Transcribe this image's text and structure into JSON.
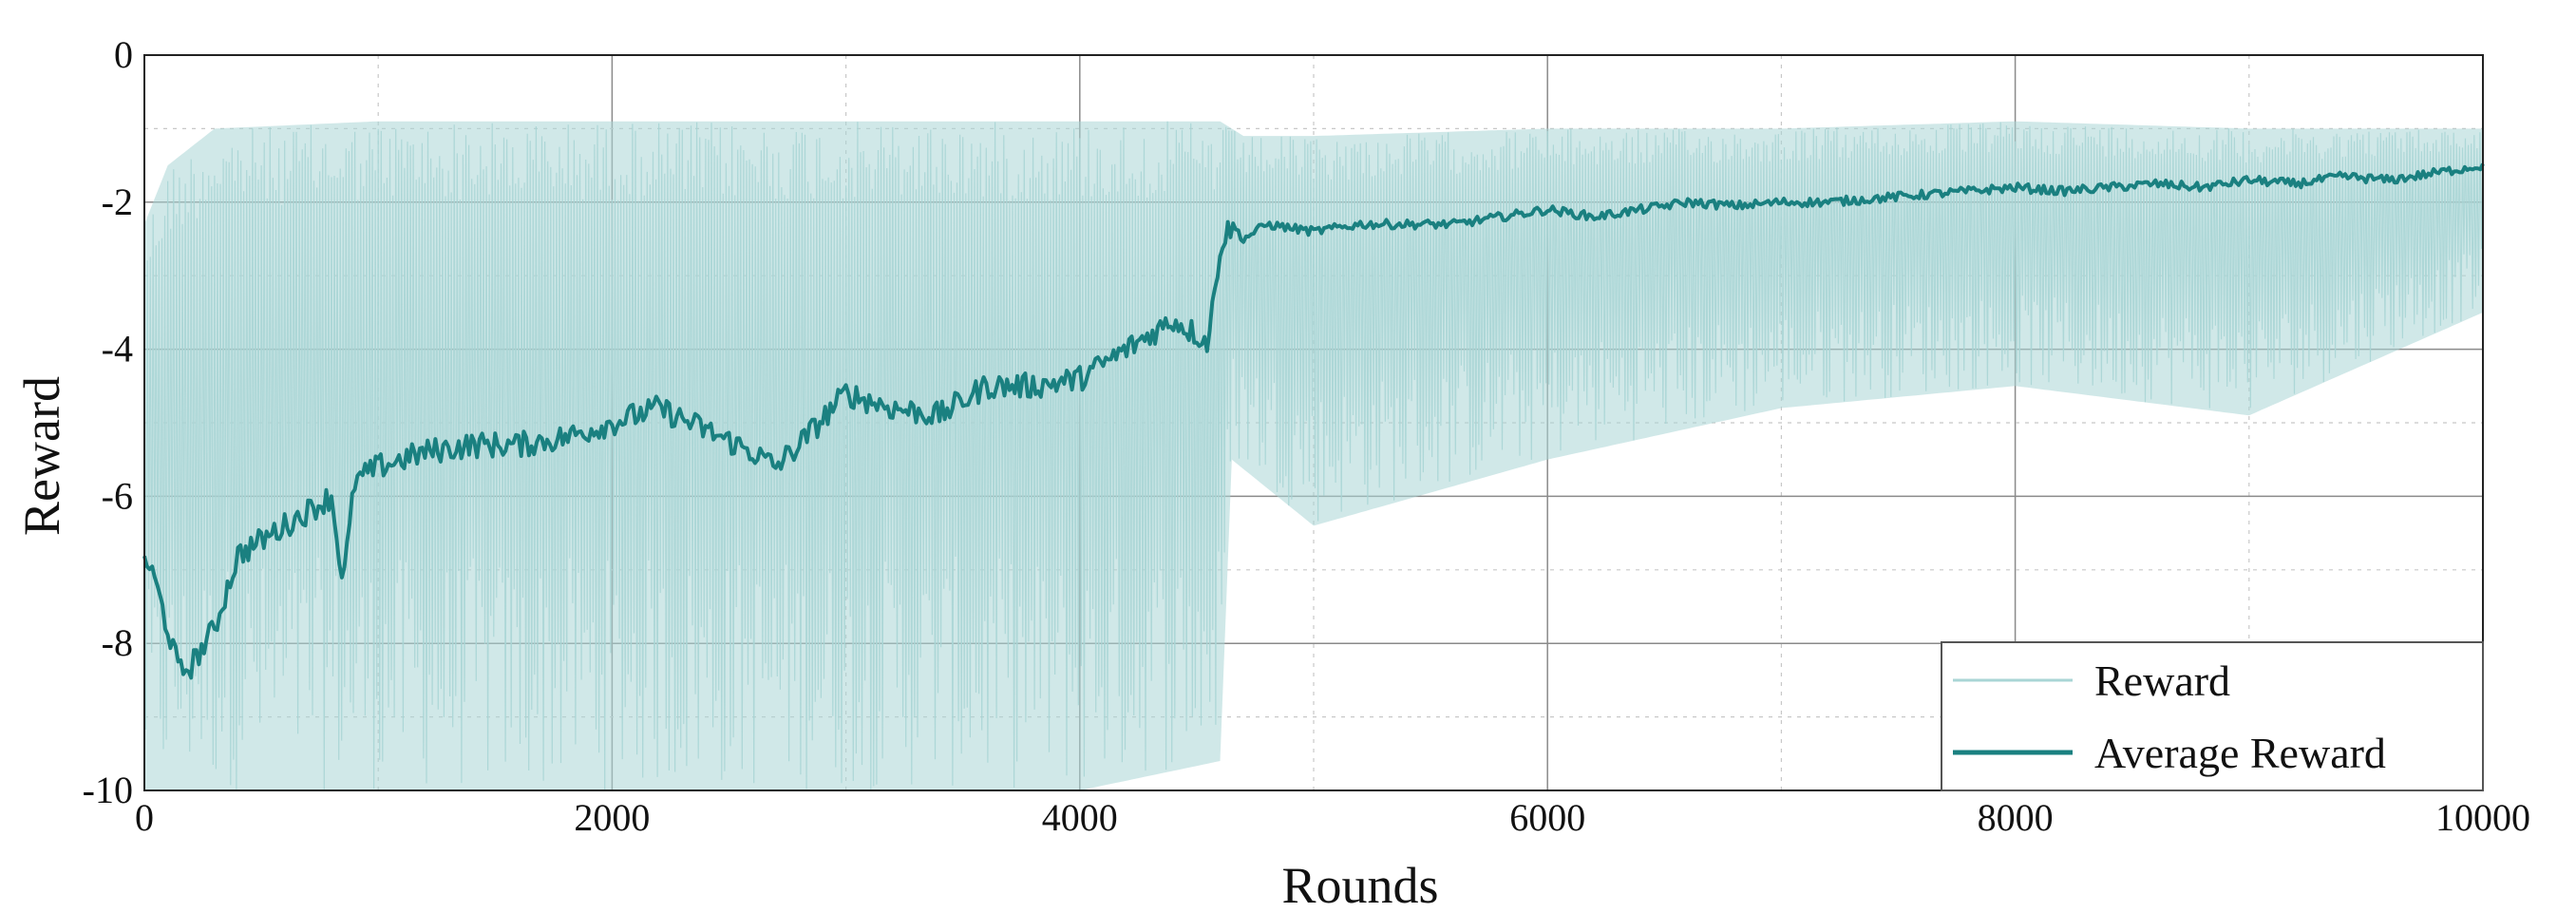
{
  "chart_data": {
    "type": "line",
    "xlabel": "Rounds",
    "ylabel": "Reward",
    "xlim": [
      0,
      10000
    ],
    "ylim": [
      -10,
      0
    ],
    "xticks": [
      0,
      2000,
      4000,
      6000,
      8000,
      10000
    ],
    "yticks": [
      0,
      -2,
      -4,
      -6,
      -8,
      -10
    ],
    "x_tick_labels": [
      "0",
      "2000",
      "4000",
      "6000",
      "8000",
      "10000"
    ],
    "y_tick_labels": [
      "0",
      "-2",
      "-4",
      "-6",
      "-8",
      "-10"
    ],
    "grid": true,
    "legend_position": "bottom-right",
    "series": [
      {
        "name": "Reward",
        "color": "#a9d5d5",
        "style": "thin-noisy",
        "upper_envelope": {
          "x": [
            0,
            100,
            300,
            1000,
            2000,
            3000,
            4000,
            4600,
            4700,
            5000,
            6000,
            7000,
            8000,
            9000,
            10000
          ],
          "y": [
            -2.3,
            -1.5,
            -1.0,
            -0.9,
            -0.9,
            -0.9,
            -0.9,
            -0.9,
            -1.1,
            -1.1,
            -1.0,
            -1.0,
            -0.9,
            -1.0,
            -1.0
          ]
        },
        "lower_envelope": {
          "x": [
            0,
            200,
            1000,
            2000,
            3000,
            4000,
            4600,
            4650,
            5000,
            6000,
            7000,
            8000,
            9000,
            10000
          ],
          "y": [
            -10,
            -10,
            -10,
            -10,
            -10,
            -10,
            -9.6,
            -5.5,
            -6.4,
            -5.5,
            -4.8,
            -4.5,
            -4.9,
            -3.5
          ]
        }
      },
      {
        "name": "Average Reward",
        "color": "#1a8080",
        "style": "thick",
        "x": [
          0,
          50,
          150,
          200,
          300,
          400,
          500,
          600,
          800,
          850,
          900,
          1000,
          1200,
          1400,
          1600,
          1800,
          2000,
          2200,
          2400,
          2600,
          2700,
          2800,
          3000,
          3200,
          3400,
          3600,
          3800,
          4000,
          4200,
          4400,
          4550,
          4600,
          4650,
          4700,
          4800,
          5000,
          5200,
          5400,
          5600,
          5800,
          6000,
          6200,
          6400,
          6600,
          6800,
          7000,
          7200,
          7400,
          7600,
          7800,
          8000,
          8200,
          8400,
          8600,
          8800,
          9000,
          9200,
          9400,
          9600,
          9800,
          10000
        ],
        "y": [
          -6.8,
          -7.2,
          -8.4,
          -8.3,
          -7.8,
          -6.8,
          -6.6,
          -6.4,
          -6.0,
          -7.2,
          -5.8,
          -5.6,
          -5.4,
          -5.3,
          -5.3,
          -5.2,
          -5.0,
          -4.8,
          -5.1,
          -5.4,
          -5.6,
          -5.3,
          -4.6,
          -4.8,
          -4.9,
          -4.5,
          -4.5,
          -4.4,
          -4.0,
          -3.6,
          -3.9,
          -2.6,
          -2.3,
          -2.5,
          -2.3,
          -2.4,
          -2.3,
          -2.3,
          -2.3,
          -2.2,
          -2.1,
          -2.2,
          -2.1,
          -2.0,
          -2.05,
          -2.0,
          -2.0,
          -1.95,
          -1.9,
          -1.85,
          -1.8,
          -1.85,
          -1.8,
          -1.75,
          -1.8,
          -1.7,
          -1.75,
          -1.65,
          -1.7,
          -1.6,
          -1.5
        ]
      }
    ]
  }
}
